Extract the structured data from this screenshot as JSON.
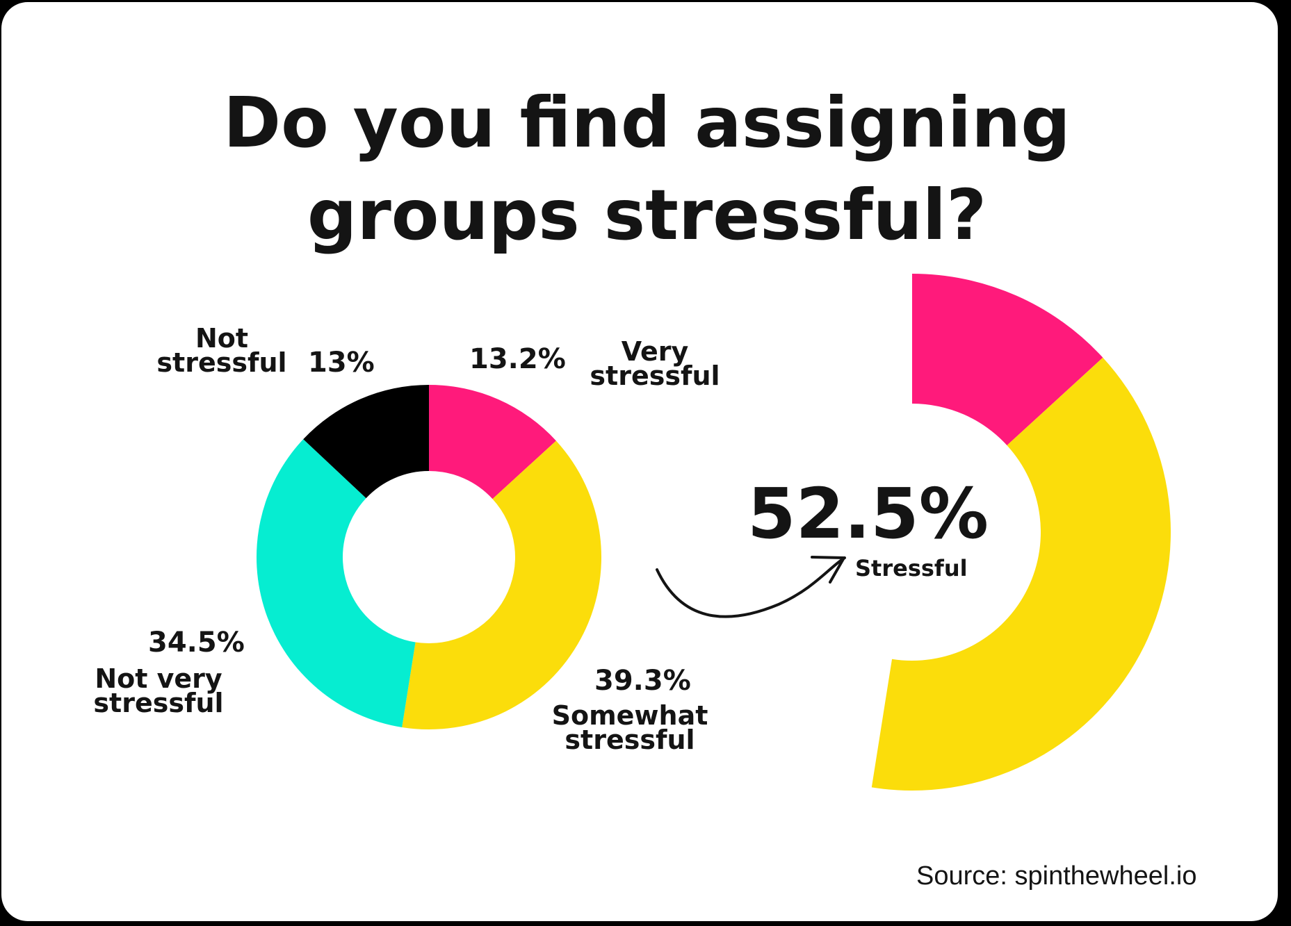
{
  "title": {
    "line1": "Do you find assigning",
    "line2": "groups stressful?"
  },
  "chart_data": [
    {
      "type": "pie",
      "donut": true,
      "slices": [
        {
          "label_line1": "Very",
          "label_line2": "stressful",
          "value": 13.2,
          "value_text": "13.2%",
          "color": "#FF1A7B"
        },
        {
          "label_line1": "Somewhat",
          "label_line2": "stressful",
          "value": 39.3,
          "value_text": "39.3%",
          "color": "#FBDD0B"
        },
        {
          "label_line1": "Not very",
          "label_line2": "stressful",
          "value": 34.5,
          "value_text": "34.5%",
          "color": "#06EDD1"
        },
        {
          "label_line1": "Not",
          "label_line2": "stressful",
          "value": 13.0,
          "value_text": "13%",
          "color": "#000000"
        }
      ]
    },
    {
      "type": "pie",
      "donut": true,
      "partial": true,
      "slices": [
        {
          "value": 13.2,
          "color": "#FF1A7B"
        },
        {
          "value": 39.3,
          "color": "#FBDD0B"
        }
      ],
      "total_text": "52.5%",
      "total_label": "Stressful"
    }
  ],
  "source": "Source: spinthewheel.io"
}
